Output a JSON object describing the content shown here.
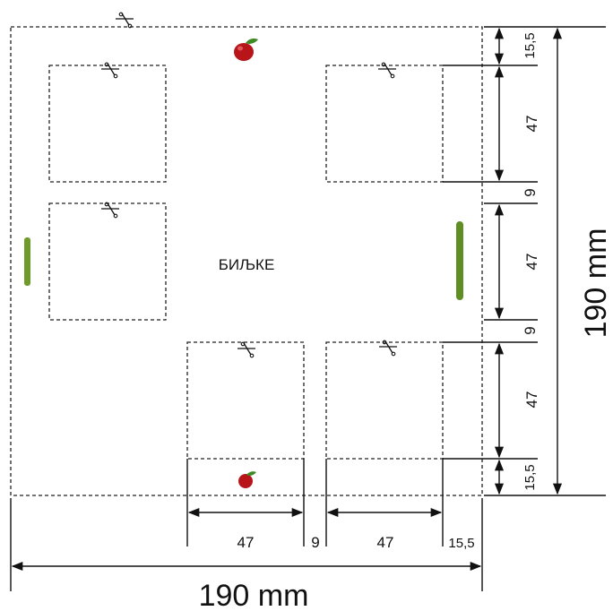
{
  "diagram": {
    "center_label": "БИЉКЕ",
    "total_width_label": "190 mm",
    "total_height_label": "190 mm",
    "bottom_dims": {
      "square_a": "47",
      "gap": "9",
      "square_b": "47",
      "margin": "15,5"
    },
    "right_dims": {
      "margin_top": "15,5",
      "square_1": "47",
      "gap_1": "9",
      "square_2": "47",
      "gap_2": "9",
      "square_3": "47",
      "margin_bottom": "15,5"
    },
    "colors": {
      "line": "#222222",
      "apple_red": "#b8151b",
      "leaf_green": "#3e8a25",
      "stick_green": "#6f9a2c"
    },
    "icons": [
      "scissors-icon",
      "apple-icon",
      "stick-icon"
    ]
  }
}
